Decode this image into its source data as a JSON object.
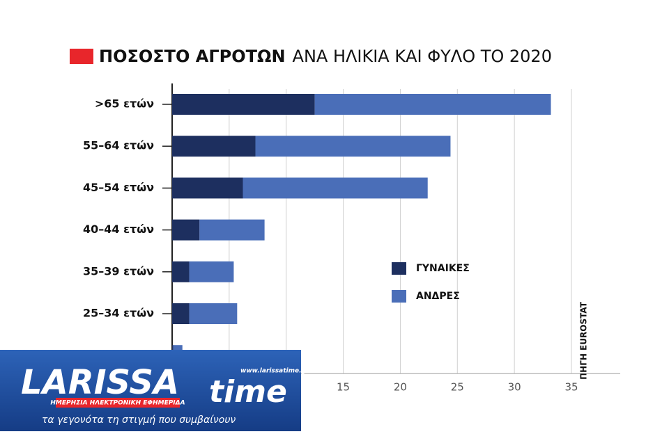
{
  "chart_data": {
    "type": "stacked_barh",
    "title": "ΠΟΣΟΣΤΟ ΑΓΡΟΤΩΝ",
    "subtitle": "ΑΝΑ ΗΛΙΚΙΑ ΚΑΙ ΦΥΛΟ ΤΟ 2020",
    "source": "ΠΗΓΗ EUROSTAT",
    "categories": [
      ">65 ετών",
      "55–64 ετών",
      "45–54 ετών",
      "40–44 ετών",
      "35–39 ετών",
      "25–34 ετών",
      null
    ],
    "series": [
      {
        "name": "ΓΥΝΑΙΚΕΣ",
        "color": "#1d2f5f",
        "values": [
          12.5,
          7.3,
          6.2,
          2.4,
          1.5,
          1.5,
          0.1
        ]
      },
      {
        "name": "ΑΝΔΡΕΣ",
        "color": "#4a6eb8",
        "values": [
          20.7,
          17.1,
          16.2,
          5.7,
          3.9,
          4.2,
          0.8
        ]
      }
    ],
    "xlim": [
      0,
      37.5
    ],
    "xticks": [
      0,
      5,
      10,
      15,
      20,
      25,
      30,
      35
    ],
    "grid": true
  },
  "logo": {
    "name": "LARISSA",
    "name2": "time",
    "url": "www.larissatime.gr",
    "tagline": "ΗΜΕΡΗΣΙΑ ΗΛΕΚΤΡΟΝΙΚΗ ΕΦΗΜΕΡΙΔΑ",
    "motto": "τα γεγονότα τη στιγμή που συμβαίνουν"
  }
}
